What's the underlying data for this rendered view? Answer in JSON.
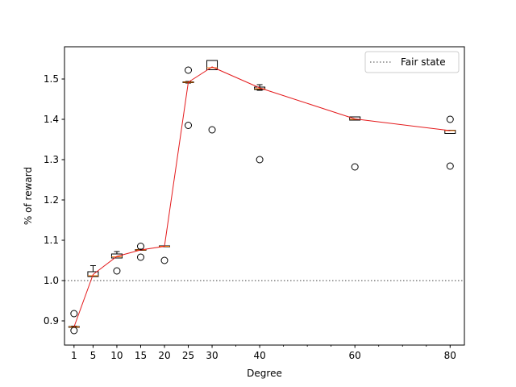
{
  "chart_data": {
    "type": "box",
    "xlabel": "Degree",
    "ylabel": "% of reward",
    "xlim": [
      -1,
      83
    ],
    "ylim": [
      0.84,
      1.58
    ],
    "x_ticks_labeled": [
      1,
      5,
      10,
      15,
      20,
      25,
      30,
      40,
      60,
      80
    ],
    "x_ticks_minor": [
      35,
      45,
      50,
      55,
      65,
      70,
      75
    ],
    "y_ticks": [
      0.9,
      1.0,
      1.1,
      1.2,
      1.3,
      1.4,
      1.5
    ],
    "y_tick_labels": [
      "0.9",
      "1.0",
      "1.1",
      "1.2",
      "1.3",
      "1.4",
      "1.5"
    ],
    "grid": false,
    "legend": {
      "position": "top-right",
      "entries": [
        {
          "label": "Fair state",
          "style": "dotted-gray"
        }
      ]
    },
    "reference_line": {
      "y": 1.0,
      "label": "Fair state"
    },
    "boxes": [
      {
        "x": 1,
        "whislo": 0.884,
        "q1": 0.884,
        "med": 0.885,
        "q3": 0.886,
        "whishi": 0.887,
        "fliers": [
          0.918,
          0.876
        ]
      },
      {
        "x": 5,
        "whislo": 1.01,
        "q1": 1.01,
        "med": 1.012,
        "q3": 1.022,
        "whishi": 1.037,
        "fliers": []
      },
      {
        "x": 10,
        "whislo": 1.056,
        "q1": 1.056,
        "med": 1.059,
        "q3": 1.066,
        "whishi": 1.072,
        "fliers": [
          1.024
        ]
      },
      {
        "x": 15,
        "whislo": 1.075,
        "q1": 1.075,
        "med": 1.076,
        "q3": 1.077,
        "whishi": 1.078,
        "fliers": [
          1.085,
          1.058
        ]
      },
      {
        "x": 20,
        "whislo": 1.084,
        "q1": 1.084,
        "med": 1.085,
        "q3": 1.086,
        "whishi": 1.086,
        "fliers": [
          1.05
        ]
      },
      {
        "x": 25,
        "whislo": 1.49,
        "q1": 1.491,
        "med": 1.492,
        "q3": 1.493,
        "whishi": 1.494,
        "fliers": [
          1.522,
          1.385
        ]
      },
      {
        "x": 30,
        "whislo": 1.523,
        "q1": 1.523,
        "med": 1.528,
        "q3": 1.546,
        "whishi": 1.546,
        "fliers": [
          1.374
        ]
      },
      {
        "x": 40,
        "whislo": 1.472,
        "q1": 1.474,
        "med": 1.476,
        "q3": 1.48,
        "whishi": 1.486,
        "fliers": [
          1.3
        ]
      },
      {
        "x": 60,
        "whislo": 1.398,
        "q1": 1.398,
        "med": 1.4,
        "q3": 1.406,
        "whishi": 1.406,
        "fliers": [
          1.282
        ]
      },
      {
        "x": 80,
        "whislo": 1.365,
        "q1": 1.365,
        "med": 1.372,
        "q3": 1.373,
        "whishi": 1.373,
        "fliers": [
          1.4,
          1.284
        ]
      }
    ],
    "mean_line": {
      "color": "#e41a1c",
      "x": [
        1,
        5,
        10,
        15,
        20,
        25,
        30,
        40,
        60,
        80
      ],
      "y": [
        0.885,
        1.015,
        1.06,
        1.076,
        1.085,
        1.492,
        1.53,
        1.478,
        1.401,
        1.372
      ]
    },
    "colors": {
      "median": "#ff7f0e",
      "mean_line": "#e41a1c",
      "fair_line": "#808080",
      "box": "#000000"
    }
  }
}
